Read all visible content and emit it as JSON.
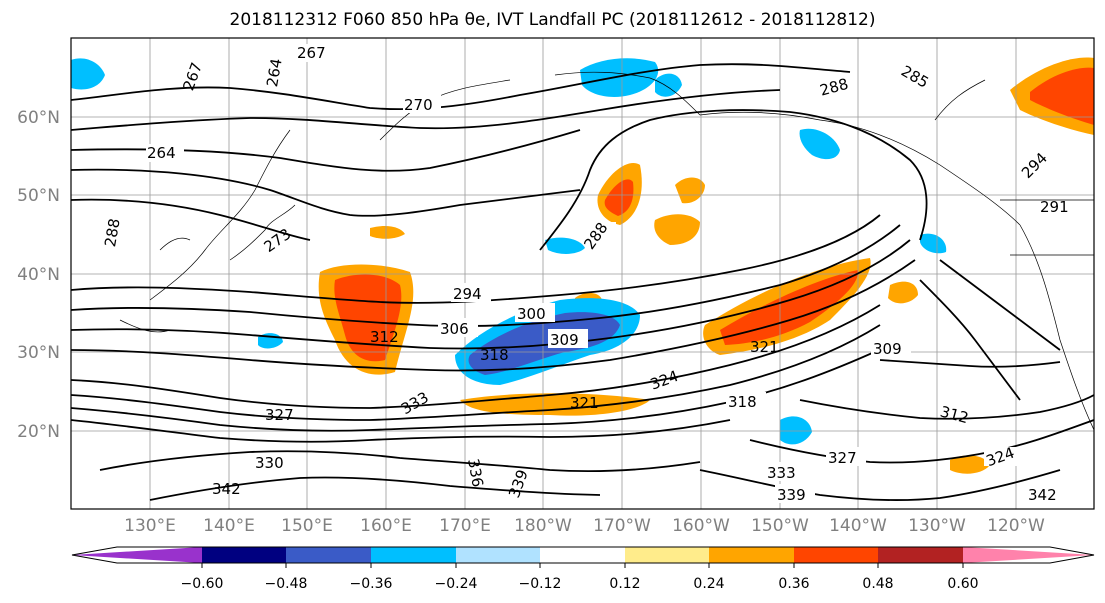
{
  "title": "2018112312 F060 850 hPa θe, IVT Landfall PC (2018112612 - 2018112812)",
  "lat_labels": [
    "60°N",
    "50°N",
    "40°N",
    "30°N",
    "20°N"
  ],
  "lon_labels": [
    "130°E",
    "140°E",
    "150°E",
    "160°E",
    "170°E",
    "180°W",
    "170°W",
    "160°W",
    "150°W",
    "140°W",
    "130°W",
    "120°W"
  ],
  "colorbar": {
    "colors": [
      "#9932CC",
      "#000080",
      "#3A5BC7",
      "#00BFFF",
      "#B0E2FF",
      "#FFFFFF",
      "#FFEC8B",
      "#FFA500",
      "#FF4500",
      "#B22222",
      "#FF82AB"
    ],
    "tick_labels": [
      "−0.60",
      "−0.48",
      "−0.36",
      "−0.24",
      "−0.12",
      "0.12",
      "0.24",
      "0.36",
      "0.48",
      "0.60"
    ]
  },
  "contour_labels": [
    "267",
    "264",
    "270",
    "264",
    "267",
    "273",
    "288",
    "294",
    "300",
    "306",
    "309",
    "312",
    "318",
    "321",
    "324",
    "327",
    "330",
    "333",
    "336",
    "339",
    "342",
    "309",
    "312",
    "318",
    "321",
    "324",
    "327",
    "333",
    "339",
    "342",
    "288",
    "285",
    "291",
    "294",
    "288"
  ]
}
